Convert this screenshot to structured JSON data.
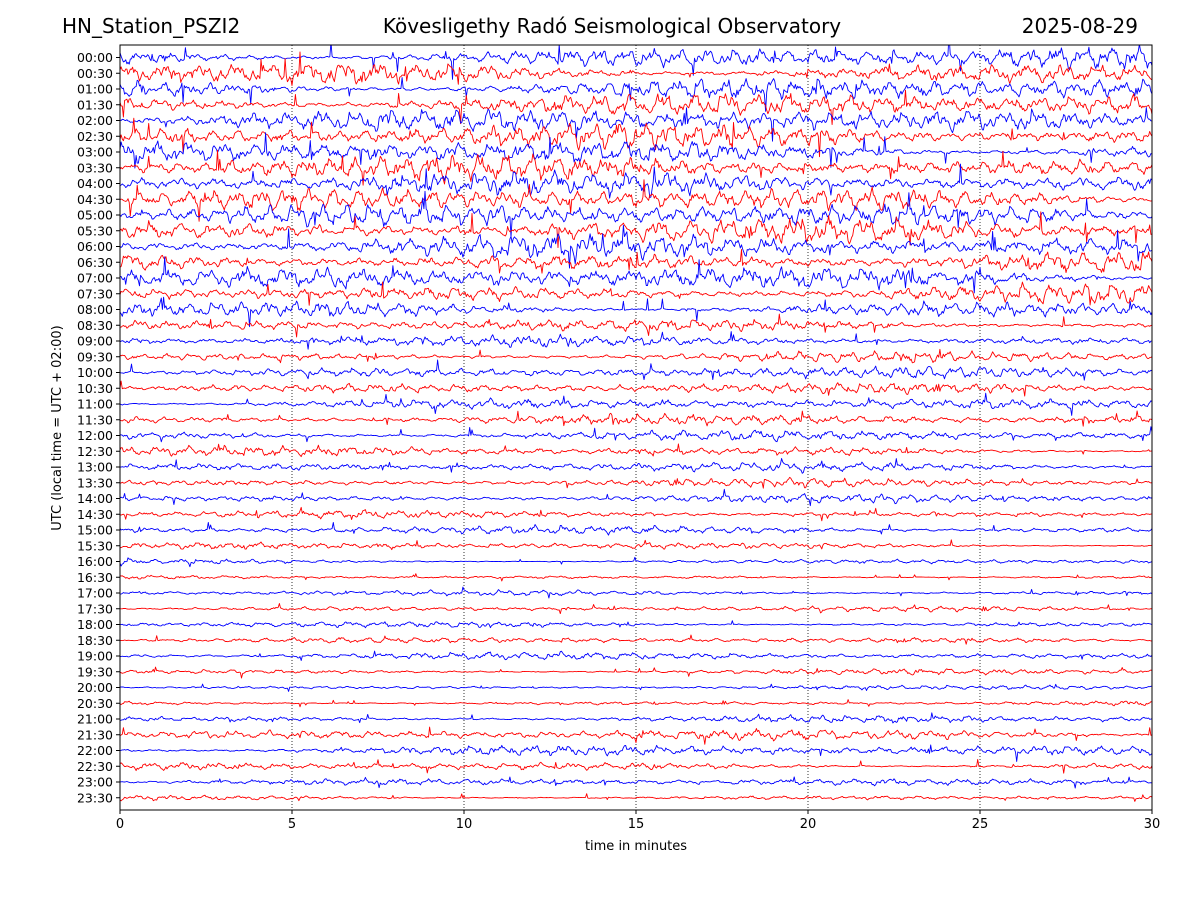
{
  "header": {
    "station": "HN_Station_PSZI2",
    "observatory": "Kövesligethy Radó Seismological Observatory",
    "date": "2025-08-29"
  },
  "chart_data": {
    "type": "line",
    "title": "Kövesligethy Radó Seismological Observatory",
    "xlabel": "time in minutes",
    "ylabel": "UTC (local time = UTC + 02:00)",
    "xlim": [
      0,
      30
    ],
    "x_ticks": [
      0,
      5,
      10,
      15,
      20,
      25,
      30
    ],
    "grid": "vertical dotted at x ticks",
    "colors": [
      "#0000ff",
      "#ff0000"
    ],
    "rows": [
      "00:00",
      "00:30",
      "01:00",
      "01:30",
      "02:00",
      "02:30",
      "03:00",
      "03:30",
      "04:00",
      "04:30",
      "05:00",
      "05:30",
      "06:00",
      "06:30",
      "07:00",
      "07:30",
      "08:00",
      "08:30",
      "09:00",
      "09:30",
      "10:00",
      "10:30",
      "11:00",
      "11:30",
      "12:00",
      "12:30",
      "13:00",
      "13:30",
      "14:00",
      "14:30",
      "15:00",
      "15:30",
      "16:00",
      "16:30",
      "17:00",
      "17:30",
      "18:00",
      "18:30",
      "19:00",
      "19:30",
      "20:00",
      "20:30",
      "21:00",
      "21:30",
      "22:00",
      "22:30",
      "23:00",
      "23:30"
    ],
    "relative_amplitude": [
      1.0,
      1.0,
      1.0,
      1.0,
      1.0,
      1.0,
      1.0,
      1.0,
      1.0,
      1.0,
      1.0,
      1.0,
      1.0,
      1.0,
      0.95,
      0.9,
      0.75,
      0.5,
      0.45,
      0.45,
      0.5,
      0.45,
      0.45,
      0.45,
      0.45,
      0.42,
      0.4,
      0.35,
      0.35,
      0.32,
      0.35,
      0.3,
      0.22,
      0.18,
      0.22,
      0.22,
      0.25,
      0.25,
      0.32,
      0.25,
      0.18,
      0.2,
      0.3,
      0.45,
      0.45,
      0.38,
      0.3,
      0.22
    ]
  }
}
